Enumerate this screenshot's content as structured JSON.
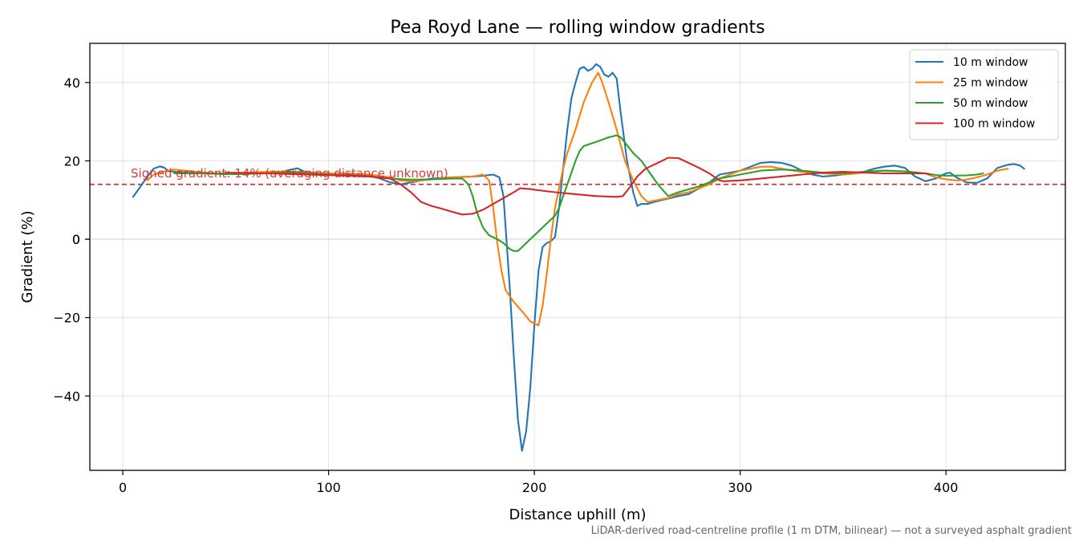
{
  "chart_data": {
    "type": "line",
    "title": "Pea Royd Lane — rolling window gradients",
    "xlabel": "Distance uphill (m)",
    "ylabel": "Gradient (%)",
    "xlim": [
      -16,
      458
    ],
    "ylim": [
      -59,
      50
    ],
    "xticks": [
      0,
      100,
      200,
      300,
      400
    ],
    "yticks": [
      -40,
      -20,
      0,
      20,
      40
    ],
    "xtick_labels": [
      "0",
      "100",
      "200",
      "300",
      "400"
    ],
    "ytick_labels": [
      "−40",
      "−20",
      "0",
      "20",
      "40"
    ],
    "grid": true,
    "legend_position": "top-right",
    "reference_line": {
      "y": 14,
      "color": "#d62728",
      "style": "dashed",
      "label": "Signed gradient: 14% (averaging distance unknown)"
    },
    "footnote": "LiDAR-derived road-centreline profile (1 m DTM, bilinear) — not a surveyed asphalt gradient",
    "series": [
      {
        "name": "10 m window",
        "color": "#1f77b4",
        "points": [
          [
            5,
            10.8
          ],
          [
            8,
            13
          ],
          [
            12,
            16
          ],
          [
            15,
            18
          ],
          [
            18,
            18.6
          ],
          [
            20,
            18.3
          ],
          [
            22,
            17.5
          ],
          [
            25,
            17.2
          ],
          [
            30,
            17
          ],
          [
            40,
            16.8
          ],
          [
            50,
            16.6
          ],
          [
            60,
            16.8
          ],
          [
            70,
            17
          ],
          [
            78,
            17.3
          ],
          [
            82,
            17.8
          ],
          [
            85,
            18.1
          ],
          [
            88,
            17.3
          ],
          [
            92,
            17
          ],
          [
            100,
            16.8
          ],
          [
            110,
            16.5
          ],
          [
            120,
            16.2
          ],
          [
            125,
            15.5
          ],
          [
            130,
            14.5
          ],
          [
            135,
            14
          ],
          [
            140,
            14.5
          ],
          [
            145,
            15
          ],
          [
            150,
            15.5
          ],
          [
            160,
            15.8
          ],
          [
            170,
            16
          ],
          [
            175,
            16.2
          ],
          [
            180,
            16.5
          ],
          [
            183,
            15.8
          ],
          [
            185,
            11
          ],
          [
            188,
            -12
          ],
          [
            190,
            -30
          ],
          [
            192,
            -46
          ],
          [
            194,
            -54
          ],
          [
            196,
            -49
          ],
          [
            198,
            -38
          ],
          [
            200,
            -22
          ],
          [
            202,
            -8
          ],
          [
            204,
            -2
          ],
          [
            206,
            -1
          ],
          [
            208,
            -0.5
          ],
          [
            210,
            0.5
          ],
          [
            212,
            8
          ],
          [
            214,
            18
          ],
          [
            216,
            28
          ],
          [
            218,
            36
          ],
          [
            220,
            40
          ],
          [
            222,
            43.5
          ],
          [
            224,
            44
          ],
          [
            226,
            43
          ],
          [
            228,
            43.5
          ],
          [
            230,
            44.7
          ],
          [
            232,
            44
          ],
          [
            234,
            42
          ],
          [
            236,
            41.5
          ],
          [
            238,
            42.5
          ],
          [
            240,
            41
          ],
          [
            242,
            32
          ],
          [
            245,
            20
          ],
          [
            248,
            12
          ],
          [
            250,
            8.5
          ],
          [
            252,
            9
          ],
          [
            255,
            9
          ],
          [
            258,
            9.5
          ],
          [
            262,
            10
          ],
          [
            266,
            10.5
          ],
          [
            270,
            11
          ],
          [
            275,
            11.5
          ],
          [
            280,
            13
          ],
          [
            285,
            14.5
          ],
          [
            290,
            16.5
          ],
          [
            295,
            17
          ],
          [
            300,
            17.5
          ],
          [
            305,
            18.5
          ],
          [
            310,
            19.5
          ],
          [
            315,
            19.7
          ],
          [
            320,
            19.5
          ],
          [
            325,
            18.8
          ],
          [
            330,
            17.5
          ],
          [
            335,
            16.5
          ],
          [
            340,
            16
          ],
          [
            345,
            16.2
          ],
          [
            350,
            16.5
          ],
          [
            355,
            16.7
          ],
          [
            360,
            17.2
          ],
          [
            365,
            18
          ],
          [
            370,
            18.5
          ],
          [
            375,
            18.8
          ],
          [
            380,
            18.2
          ],
          [
            385,
            16
          ],
          [
            390,
            14.8
          ],
          [
            395,
            15.5
          ],
          [
            400,
            16.8
          ],
          [
            402,
            17
          ],
          [
            405,
            15.8
          ],
          [
            410,
            14.5
          ],
          [
            415,
            14.4
          ],
          [
            420,
            15.5
          ],
          [
            425,
            18.2
          ],
          [
            430,
            19
          ],
          [
            433,
            19.2
          ],
          [
            436,
            18.8
          ],
          [
            438,
            18
          ]
        ]
      },
      {
        "name": "25 m window",
        "color": "#ff7f0e",
        "points": [
          [
            12,
            15
          ],
          [
            15,
            16.5
          ],
          [
            20,
            17.3
          ],
          [
            25,
            17.8
          ],
          [
            30,
            17.5
          ],
          [
            40,
            17
          ],
          [
            50,
            16.8
          ],
          [
            60,
            17
          ],
          [
            70,
            17.2
          ],
          [
            80,
            17.3
          ],
          [
            90,
            17
          ],
          [
            100,
            16.8
          ],
          [
            110,
            16.8
          ],
          [
            120,
            16.5
          ],
          [
            130,
            15.8
          ],
          [
            135,
            15
          ],
          [
            140,
            14.8
          ],
          [
            145,
            15
          ],
          [
            150,
            15.3
          ],
          [
            160,
            15.8
          ],
          [
            170,
            16
          ],
          [
            175,
            16.5
          ],
          [
            178,
            15
          ],
          [
            180,
            8
          ],
          [
            182,
            -1
          ],
          [
            184,
            -8
          ],
          [
            186,
            -13
          ],
          [
            190,
            -16
          ],
          [
            195,
            -19
          ],
          [
            198,
            -21
          ],
          [
            200,
            -21.5
          ],
          [
            202,
            -22
          ],
          [
            204,
            -17
          ],
          [
            206,
            -9
          ],
          [
            208,
            0
          ],
          [
            210,
            8
          ],
          [
            212,
            13
          ],
          [
            214,
            18
          ],
          [
            216,
            22
          ],
          [
            220,
            28
          ],
          [
            224,
            35
          ],
          [
            228,
            40
          ],
          [
            231,
            42.5
          ],
          [
            233,
            40
          ],
          [
            236,
            35
          ],
          [
            240,
            28
          ],
          [
            244,
            20
          ],
          [
            248,
            15
          ],
          [
            252,
            11
          ],
          [
            255,
            9.5
          ],
          [
            260,
            10
          ],
          [
            265,
            10.5
          ],
          [
            270,
            11.5
          ],
          [
            275,
            12
          ],
          [
            280,
            13
          ],
          [
            285,
            14
          ],
          [
            290,
            15.5
          ],
          [
            300,
            17.5
          ],
          [
            305,
            18
          ],
          [
            310,
            18.5
          ],
          [
            315,
            18.5
          ],
          [
            320,
            18
          ],
          [
            330,
            17.2
          ],
          [
            340,
            16.8
          ],
          [
            350,
            16.5
          ],
          [
            360,
            17
          ],
          [
            370,
            17.5
          ],
          [
            380,
            17.3
          ],
          [
            390,
            16.8
          ],
          [
            395,
            15.8
          ],
          [
            400,
            15.3
          ],
          [
            405,
            15
          ],
          [
            410,
            15.2
          ],
          [
            415,
            15.8
          ],
          [
            420,
            16.5
          ],
          [
            425,
            17.5
          ],
          [
            430,
            18
          ]
        ]
      },
      {
        "name": "50 m window",
        "color": "#2ca02c",
        "points": [
          [
            25,
            16.8
          ],
          [
            40,
            16.8
          ],
          [
            55,
            16.6
          ],
          [
            70,
            16.8
          ],
          [
            80,
            17
          ],
          [
            90,
            16.8
          ],
          [
            100,
            16.5
          ],
          [
            110,
            16.2
          ],
          [
            120,
            16
          ],
          [
            130,
            15.5
          ],
          [
            140,
            15.2
          ],
          [
            150,
            15.3
          ],
          [
            160,
            15.5
          ],
          [
            165,
            15.5
          ],
          [
            168,
            14
          ],
          [
            170,
            11
          ],
          [
            172,
            7
          ],
          [
            175,
            3
          ],
          [
            178,
            1
          ],
          [
            182,
            0
          ],
          [
            185,
            -1
          ],
          [
            188,
            -2.5
          ],
          [
            190,
            -3
          ],
          [
            192,
            -3
          ],
          [
            195,
            -1.5
          ],
          [
            198,
            0
          ],
          [
            202,
            2
          ],
          [
            206,
            4
          ],
          [
            210,
            6
          ],
          [
            212,
            8
          ],
          [
            214,
            11
          ],
          [
            216,
            14
          ],
          [
            218,
            17
          ],
          [
            220,
            20
          ],
          [
            222,
            22.5
          ],
          [
            224,
            23.8
          ],
          [
            228,
            24.5
          ],
          [
            232,
            25.2
          ],
          [
            236,
            26
          ],
          [
            240,
            26.5
          ],
          [
            242,
            26
          ],
          [
            245,
            24
          ],
          [
            248,
            22
          ],
          [
            252,
            20
          ],
          [
            256,
            17
          ],
          [
            260,
            14
          ],
          [
            265,
            11
          ],
          [
            270,
            12
          ],
          [
            280,
            13.5
          ],
          [
            290,
            15.5
          ],
          [
            300,
            16.5
          ],
          [
            310,
            17.5
          ],
          [
            320,
            17.8
          ],
          [
            330,
            17.5
          ],
          [
            340,
            17
          ],
          [
            350,
            16.8
          ],
          [
            360,
            17.2
          ],
          [
            370,
            17.5
          ],
          [
            380,
            17.3
          ],
          [
            390,
            16.8
          ],
          [
            395,
            16.4
          ],
          [
            400,
            16.2
          ],
          [
            410,
            16.3
          ],
          [
            415,
            16.5
          ],
          [
            418,
            16.8
          ]
        ]
      },
      {
        "name": "100 m window",
        "color": "#d62728",
        "points": [
          [
            50,
            17
          ],
          [
            70,
            16.8
          ],
          [
            90,
            16.5
          ],
          [
            110,
            16.2
          ],
          [
            120,
            16
          ],
          [
            130,
            15.5
          ],
          [
            135,
            14
          ],
          [
            140,
            12
          ],
          [
            145,
            9.5
          ],
          [
            150,
            8.5
          ],
          [
            155,
            7.8
          ],
          [
            160,
            7
          ],
          [
            165,
            6.3
          ],
          [
            170,
            6.5
          ],
          [
            175,
            7.5
          ],
          [
            180,
            9
          ],
          [
            185,
            10.5
          ],
          [
            190,
            12
          ],
          [
            193,
            13
          ],
          [
            198,
            12.8
          ],
          [
            202,
            12.5
          ],
          [
            210,
            12
          ],
          [
            220,
            11.5
          ],
          [
            230,
            11
          ],
          [
            240,
            10.8
          ],
          [
            243,
            11
          ],
          [
            246,
            13
          ],
          [
            250,
            16
          ],
          [
            254,
            18
          ],
          [
            258,
            19
          ],
          [
            262,
            20
          ],
          [
            265,
            20.8
          ],
          [
            270,
            20.7
          ],
          [
            275,
            19.5
          ],
          [
            280,
            18.2
          ],
          [
            285,
            16.8
          ],
          [
            290,
            15
          ],
          [
            292,
            14.8
          ],
          [
            300,
            15
          ],
          [
            310,
            15.5
          ],
          [
            320,
            16
          ],
          [
            330,
            16.5
          ],
          [
            340,
            17
          ],
          [
            350,
            17.2
          ],
          [
            360,
            17
          ],
          [
            370,
            16.8
          ],
          [
            380,
            16.8
          ],
          [
            390,
            16.8
          ],
          [
            392,
            16.5
          ]
        ]
      }
    ]
  }
}
